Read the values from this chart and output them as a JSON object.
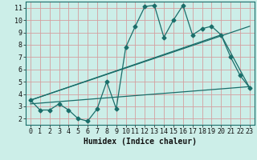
{
  "xlabel": "Humidex (Indice chaleur)",
  "background_color": "#cceee8",
  "plot_bg_color": "#cceee8",
  "grid_color": "#d4a0a0",
  "line_color": "#1a6e6a",
  "xlim": [
    -0.5,
    23.5
  ],
  "ylim": [
    1.5,
    11.5
  ],
  "xticks": [
    0,
    1,
    2,
    3,
    4,
    5,
    6,
    7,
    8,
    9,
    10,
    11,
    12,
    13,
    14,
    15,
    16,
    17,
    18,
    19,
    20,
    21,
    22,
    23
  ],
  "yticks": [
    2,
    3,
    4,
    5,
    6,
    7,
    8,
    9,
    10,
    11
  ],
  "series1_x": [
    0,
    1,
    2,
    3,
    4,
    5,
    6,
    7,
    8,
    9,
    10,
    11,
    12,
    13,
    14,
    15,
    16,
    17,
    18,
    19,
    20,
    21,
    22,
    23
  ],
  "series1_y": [
    3.5,
    2.7,
    2.7,
    3.2,
    2.7,
    2.0,
    1.8,
    2.8,
    5.0,
    2.8,
    7.8,
    9.5,
    11.1,
    11.2,
    8.6,
    10.0,
    11.2,
    8.8,
    9.3,
    9.5,
    8.8,
    7.0,
    5.5,
    4.5
  ],
  "series2_x": [
    0,
    23
  ],
  "series2_y": [
    3.5,
    9.5
  ],
  "series3_x": [
    0,
    20,
    23
  ],
  "series3_y": [
    3.5,
    8.8,
    4.5
  ],
  "series4_x": [
    0,
    23
  ],
  "series4_y": [
    3.2,
    4.6
  ],
  "marker_size": 2.5,
  "line_width": 0.9,
  "xlabel_fontsize": 7,
  "tick_fontsize": 6
}
